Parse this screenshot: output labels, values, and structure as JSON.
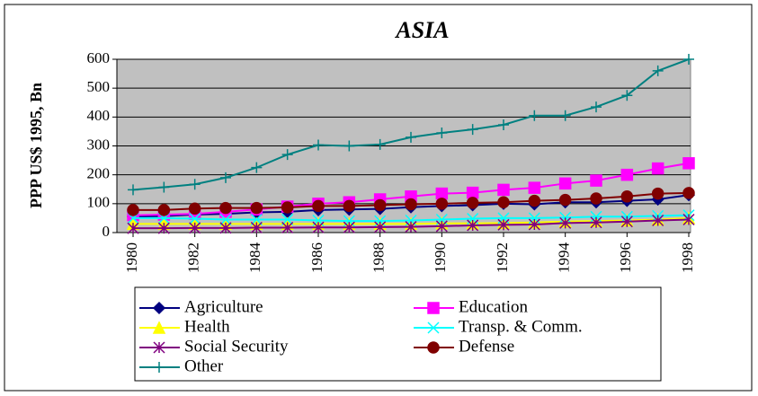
{
  "chart_data": {
    "type": "line",
    "title": "ASIA",
    "y_label": "PPP US$ 1995, Bn",
    "x": [
      1980,
      1981,
      1982,
      1983,
      1984,
      1985,
      1986,
      1987,
      1988,
      1989,
      1990,
      1991,
      1992,
      1993,
      1994,
      1995,
      1996,
      1997,
      1998
    ],
    "xlim": [
      1980,
      1998
    ],
    "xticks": [
      1980,
      1982,
      1984,
      1986,
      1988,
      1990,
      1992,
      1994,
      1996,
      1998
    ],
    "ylim": [
      0,
      600
    ],
    "yticks": [
      0,
      100,
      200,
      300,
      400,
      500,
      600
    ],
    "grid": true,
    "legend": "bottom",
    "series": [
      {
        "name": "Agriculture",
        "color": "#000080",
        "marker": "diamond",
        "values": [
          55,
          57,
          62,
          65,
          70,
          72,
          78,
          80,
          82,
          88,
          92,
          95,
          100,
          98,
          105,
          105,
          110,
          115,
          130
        ]
      },
      {
        "name": "Education",
        "color": "#ff00ff",
        "marker": "square",
        "values": [
          60,
          62,
          65,
          72,
          80,
          90,
          100,
          105,
          115,
          125,
          135,
          138,
          148,
          155,
          170,
          180,
          200,
          222,
          240
        ]
      },
      {
        "name": "Health",
        "color": "#ffff00",
        "marker": "triangle",
        "values": [
          30,
          30,
          30,
          30,
          30,
          30,
          30,
          30,
          30,
          30,
          32,
          32,
          33,
          35,
          38,
          40,
          42,
          45,
          50
        ]
      },
      {
        "name": "Transp. & Comm.",
        "color": "#00ffff",
        "marker": "x",
        "values": [
          50,
          50,
          48,
          45,
          45,
          45,
          42,
          40,
          40,
          42,
          45,
          48,
          50,
          50,
          52,
          55,
          55,
          58,
          60
        ]
      },
      {
        "name": "Social Security",
        "color": "#800080",
        "marker": "star",
        "values": [
          15,
          15,
          16,
          16,
          17,
          17,
          18,
          18,
          19,
          20,
          22,
          25,
          27,
          28,
          33,
          35,
          38,
          42,
          45
        ]
      },
      {
        "name": "Defense",
        "color": "#800000",
        "marker": "circle",
        "values": [
          78,
          78,
          83,
          85,
          85,
          87,
          92,
          92,
          95,
          98,
          100,
          103,
          105,
          110,
          113,
          118,
          125,
          135,
          137
        ]
      },
      {
        "name": "Other",
        "color": "#008080",
        "marker": "plus",
        "values": [
          148,
          157,
          167,
          190,
          225,
          270,
          303,
          300,
          305,
          330,
          345,
          357,
          373,
          405,
          405,
          435,
          475,
          560,
          600
        ]
      }
    ]
  }
}
